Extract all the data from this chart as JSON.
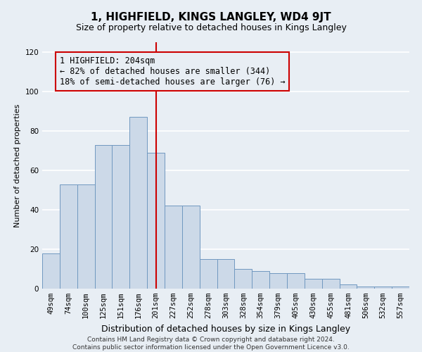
{
  "title": "1, HIGHFIELD, KINGS LANGLEY, WD4 9JT",
  "subtitle": "Size of property relative to detached houses in Kings Langley",
  "xlabel": "Distribution of detached houses by size in Kings Langley",
  "ylabel": "Number of detached properties",
  "footer_line1": "Contains HM Land Registry data © Crown copyright and database right 2024.",
  "footer_line2": "Contains public sector information licensed under the Open Government Licence v3.0.",
  "bar_labels": [
    "49sqm",
    "74sqm",
    "100sqm",
    "125sqm",
    "151sqm",
    "176sqm",
    "201sqm",
    "227sqm",
    "252sqm",
    "278sqm",
    "303sqm",
    "328sqm",
    "354sqm",
    "379sqm",
    "405sqm",
    "430sqm",
    "455sqm",
    "481sqm",
    "506sqm",
    "532sqm",
    "557sqm"
  ],
  "bar_values": [
    18,
    53,
    53,
    73,
    73,
    87,
    69,
    42,
    42,
    15,
    15,
    10,
    9,
    8,
    8,
    5,
    5,
    2,
    1,
    1,
    1
  ],
  "bar_color": "#ccd9e8",
  "bar_edgecolor": "#7098c0",
  "vline_x_index": 6,
  "vline_color": "#cc0000",
  "annotation_text": "1 HIGHFIELD: 204sqm\n← 82% of detached houses are smaller (344)\n18% of semi-detached houses are larger (76) →",
  "annotation_box_edgecolor": "#cc0000",
  "ylim": [
    0,
    125
  ],
  "yticks": [
    0,
    20,
    40,
    60,
    80,
    100,
    120
  ],
  "background_color": "#e8eef4",
  "grid_color": "#ffffff",
  "title_fontsize": 11,
  "subtitle_fontsize": 9,
  "xlabel_fontsize": 9,
  "ylabel_fontsize": 8,
  "tick_fontsize": 7.5,
  "annotation_fontsize": 8.5,
  "footer_fontsize": 6.5
}
